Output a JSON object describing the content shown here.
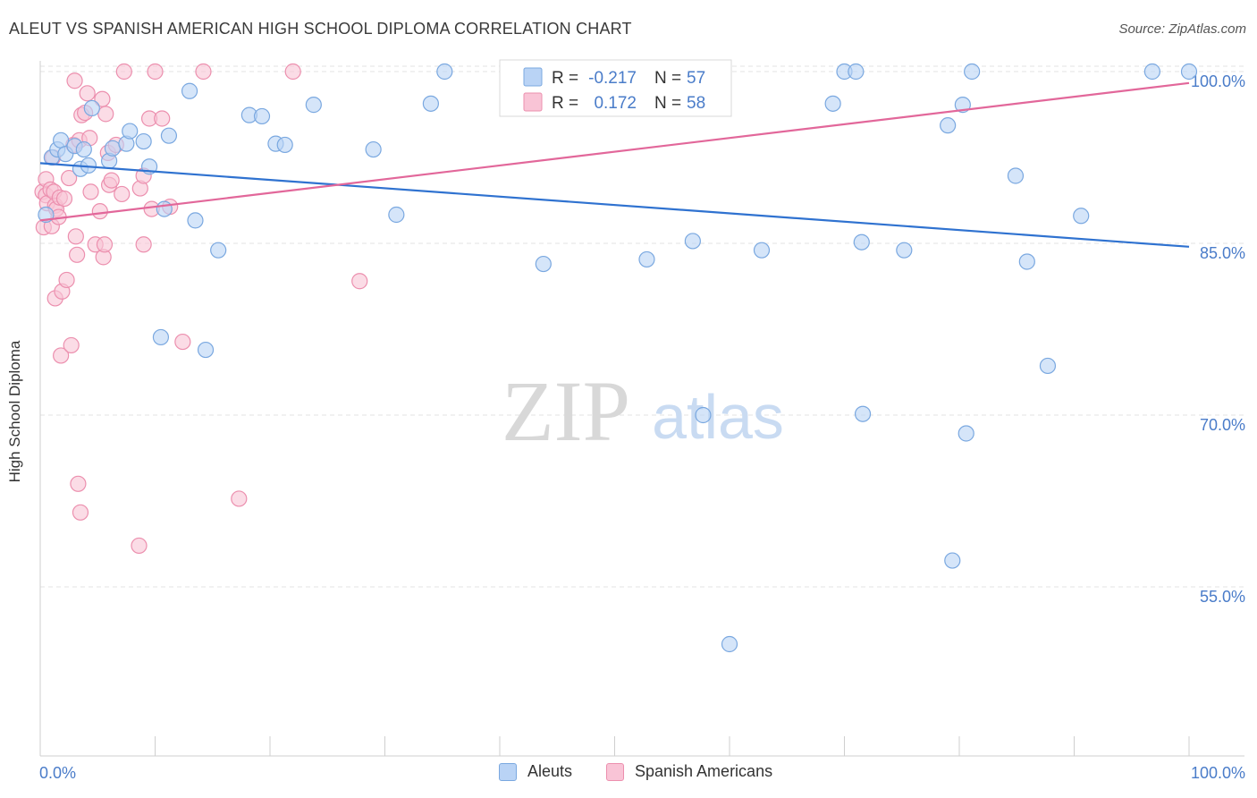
{
  "title": "ALEUT VS SPANISH AMERICAN HIGH SCHOOL DIPLOMA CORRELATION CHART",
  "source": "Source: ZipAtlas.com",
  "watermark": {
    "zip": "ZIP",
    "atlas": "atlas"
  },
  "colors": {
    "aleut_fill": "#b9d3f5",
    "aleut_stroke": "#7aa8e0",
    "aleut_line": "#2f72d0",
    "spanish_fill": "#f9c4d6",
    "spanish_stroke": "#ec8fae",
    "spanish_line": "#e2679a",
    "axis_text": "#4a7cc9",
    "grid": "#e3e3e3"
  },
  "legend_box": {
    "rows": [
      {
        "r_label": "R =",
        "r_value": "-0.217",
        "n_label": "N =",
        "n_value": "57"
      },
      {
        "r_label": "R =",
        "r_value": "0.172",
        "n_label": "N =",
        "n_value": "58"
      }
    ]
  },
  "chart_data": {
    "type": "scatter",
    "title": "ALEUT VS SPANISH AMERICAN HIGH SCHOOL DIPLOMA CORRELATION CHART",
    "xlabel": "",
    "ylabel": "High School Diploma",
    "xlim": [
      0,
      100
    ],
    "ylim": [
      40,
      101.5
    ],
    "x_tick_labels": [
      {
        "value": 0,
        "label": "0.0%"
      },
      {
        "value": 100,
        "label": "100.0%"
      }
    ],
    "y_tick_labels": [
      {
        "value": 100,
        "label": "100.0%"
      },
      {
        "value": 85,
        "label": "85.0%"
      },
      {
        "value": 70,
        "label": "70.0%"
      },
      {
        "value": 55,
        "label": "55.0%"
      }
    ],
    "grid": "horizontal dashed",
    "legend": "bottom-center",
    "series": [
      {
        "name": "Aleuts",
        "r": -0.217,
        "n": 57,
        "trend": {
          "x": [
            0,
            100
          ],
          "y": [
            92.0,
            84.7
          ]
        },
        "points": [
          [
            0.5,
            87.5
          ],
          [
            1.0,
            92.5
          ],
          [
            1.5,
            93.2
          ],
          [
            1.8,
            94.0
          ],
          [
            2.2,
            92.8
          ],
          [
            3.0,
            93.5
          ],
          [
            3.5,
            91.5
          ],
          [
            3.8,
            93.2
          ],
          [
            4.2,
            91.8
          ],
          [
            4.5,
            96.8
          ],
          [
            6.0,
            92.2
          ],
          [
            6.3,
            93.3
          ],
          [
            7.5,
            93.7
          ],
          [
            7.8,
            94.8
          ],
          [
            9.0,
            93.9
          ],
          [
            9.5,
            91.7
          ],
          [
            10.5,
            76.8
          ],
          [
            10.8,
            88.0
          ],
          [
            11.2,
            94.4
          ],
          [
            13.0,
            98.3
          ],
          [
            13.5,
            87.0
          ],
          [
            14.4,
            75.7
          ],
          [
            15.5,
            84.4
          ],
          [
            18.2,
            96.2
          ],
          [
            19.3,
            96.1
          ],
          [
            20.5,
            93.7
          ],
          [
            21.3,
            93.6
          ],
          [
            23.8,
            97.1
          ],
          [
            29.0,
            93.2
          ],
          [
            31.0,
            87.5
          ],
          [
            34.0,
            97.2
          ],
          [
            35.2,
            100.0
          ],
          [
            43.8,
            83.2
          ],
          [
            47.0,
            100.0
          ],
          [
            52.8,
            83.6
          ],
          [
            56.0,
            100.0
          ],
          [
            56.8,
            85.2
          ],
          [
            57.7,
            70.0
          ],
          [
            62.8,
            84.4
          ],
          [
            60.0,
            50.0
          ],
          [
            69.0,
            97.2
          ],
          [
            70.0,
            100.0
          ],
          [
            71.0,
            100.0
          ],
          [
            71.5,
            85.1
          ],
          [
            71.6,
            70.1
          ],
          [
            75.2,
            84.4
          ],
          [
            79.0,
            95.3
          ],
          [
            79.4,
            57.3
          ],
          [
            80.3,
            97.1
          ],
          [
            80.6,
            68.4
          ],
          [
            81.1,
            100.0
          ],
          [
            84.9,
            90.9
          ],
          [
            85.9,
            83.4
          ],
          [
            87.7,
            74.3
          ],
          [
            90.6,
            87.4
          ],
          [
            96.8,
            100.0
          ],
          [
            100.0,
            100.0
          ]
        ]
      },
      {
        "name": "Spanish Americans",
        "r": 0.172,
        "n": 58,
        "trend": {
          "x": [
            0,
            100
          ],
          "y": [
            87.0,
            99.0
          ]
        },
        "points": [
          [
            0.2,
            89.5
          ],
          [
            0.3,
            86.4
          ],
          [
            0.5,
            89.2
          ],
          [
            0.5,
            90.6
          ],
          [
            0.6,
            88.5
          ],
          [
            0.9,
            89.7
          ],
          [
            1.0,
            86.5
          ],
          [
            1.1,
            92.5
          ],
          [
            1.2,
            89.5
          ],
          [
            1.3,
            88.3
          ],
          [
            1.3,
            80.2
          ],
          [
            1.4,
            88.0
          ],
          [
            1.6,
            87.3
          ],
          [
            1.7,
            89.0
          ],
          [
            1.8,
            75.2
          ],
          [
            1.9,
            80.8
          ],
          [
            2.1,
            88.9
          ],
          [
            2.3,
            81.8
          ],
          [
            2.5,
            90.7
          ],
          [
            2.7,
            76.1
          ],
          [
            2.9,
            93.6
          ],
          [
            3.0,
            99.2
          ],
          [
            3.1,
            85.6
          ],
          [
            3.2,
            84.0
          ],
          [
            3.3,
            64.0
          ],
          [
            3.4,
            94.0
          ],
          [
            3.5,
            61.5
          ],
          [
            3.6,
            96.2
          ],
          [
            3.9,
            96.4
          ],
          [
            4.1,
            98.1
          ],
          [
            4.3,
            94.2
          ],
          [
            4.4,
            89.5
          ],
          [
            4.8,
            84.9
          ],
          [
            5.2,
            87.8
          ],
          [
            5.4,
            97.6
          ],
          [
            5.5,
            83.8
          ],
          [
            5.6,
            84.9
          ],
          [
            5.7,
            96.3
          ],
          [
            5.9,
            92.9
          ],
          [
            6.0,
            90.1
          ],
          [
            6.2,
            90.5
          ],
          [
            6.6,
            93.6
          ],
          [
            7.1,
            89.3
          ],
          [
            7.3,
            100.0
          ],
          [
            8.6,
            58.6
          ],
          [
            8.7,
            89.8
          ],
          [
            9.0,
            90.9
          ],
          [
            9.0,
            84.9
          ],
          [
            9.5,
            95.9
          ],
          [
            9.7,
            88.0
          ],
          [
            10.0,
            100.0
          ],
          [
            10.6,
            95.9
          ],
          [
            11.3,
            88.2
          ],
          [
            12.4,
            76.4
          ],
          [
            14.2,
            100.0
          ],
          [
            17.3,
            62.7
          ],
          [
            22.0,
            100.0
          ],
          [
            27.8,
            81.7
          ]
        ]
      }
    ]
  }
}
